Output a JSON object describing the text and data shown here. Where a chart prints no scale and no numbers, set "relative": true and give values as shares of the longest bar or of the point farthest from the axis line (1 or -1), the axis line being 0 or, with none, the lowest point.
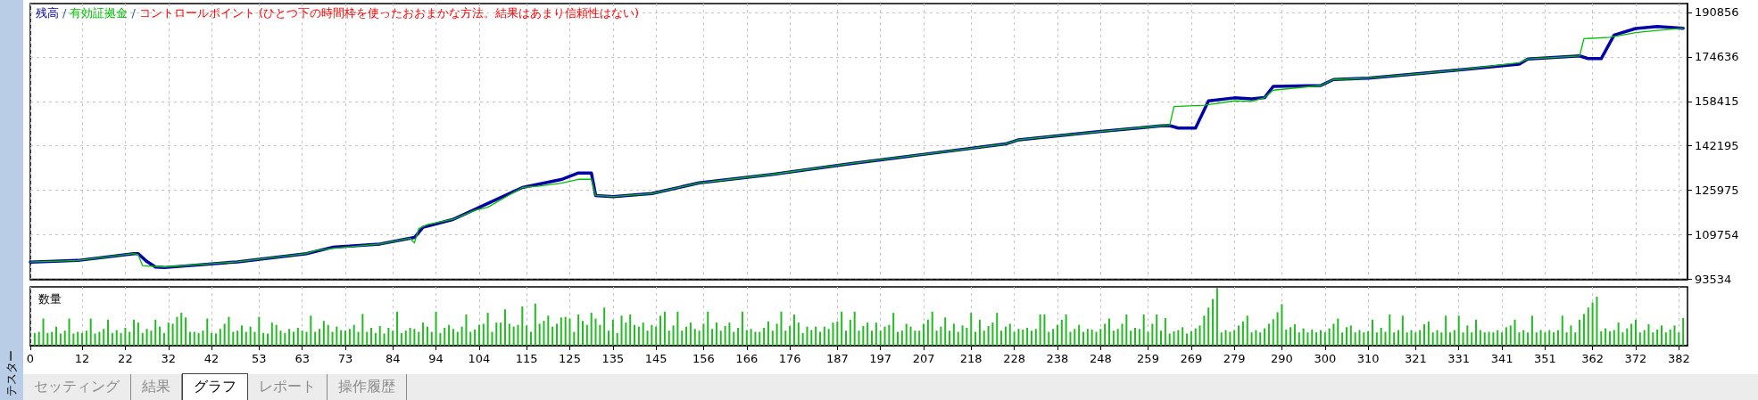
{
  "chart_data": [
    {
      "type": "line",
      "legend": "top left",
      "grid": true,
      "marker": "none",
      "line_style": "solid",
      "tick_labels": "y",
      "xlim": [
        0,
        384
      ],
      "xticks": [
        0,
        12,
        22,
        32,
        42,
        53,
        63,
        73,
        84,
        94,
        104,
        115,
        125,
        135,
        145,
        156,
        166,
        176,
        187,
        197,
        207,
        218,
        228,
        238,
        248,
        259,
        269,
        279,
        290,
        300,
        310,
        321,
        331,
        341,
        351,
        362,
        372,
        382
      ],
      "ylim": [
        93534,
        194100
      ],
      "yticks": [
        93534,
        109754,
        125975,
        142195,
        158415,
        174636,
        190856
      ],
      "annotations": [
        "/",
        "/",
        "コントロールポイント (ひとつ下の時間枠を使ったおおまかな方法。結果はあまり信頼性はない)"
      ],
      "series": [
        {
          "name": "残高",
          "color": "#0000a8",
          "x": [
            0,
            11,
            24,
            25,
            27,
            29,
            31,
            48,
            64,
            70,
            81,
            89,
            91,
            98,
            106,
            114,
            123,
            127,
            130,
            131,
            135,
            144,
            155,
            172,
            190,
            206,
            226,
            229,
            247,
            262,
            264,
            266,
            270,
            273,
            279,
            283,
            286,
            288,
            299,
            302,
            310,
            330,
            345,
            347,
            359,
            361,
            364,
            367,
            372,
            377,
            383
          ],
          "values": [
            99800,
            100400,
            102900,
            102900,
            100000,
            98000,
            97800,
            99900,
            102900,
            105200,
            106400,
            108800,
            112500,
            115400,
            121200,
            127000,
            129900,
            132300,
            132300,
            124100,
            123700,
            124800,
            128700,
            131800,
            135700,
            138900,
            142900,
            144400,
            147300,
            149500,
            149600,
            148700,
            148700,
            158600,
            159700,
            159300,
            159800,
            163900,
            164200,
            166400,
            166900,
            169700,
            172000,
            173900,
            175000,
            174000,
            174000,
            182600,
            185000,
            185700,
            185100
          ]
        },
        {
          "name": "有効証拠金",
          "color": "#00c000",
          "x": [
            0,
            11,
            24,
            25,
            26,
            31,
            48,
            64,
            66,
            70,
            81,
            88,
            89,
            90,
            92,
            98,
            103,
            106,
            114,
            118,
            123,
            127,
            130,
            131,
            135,
            144,
            155,
            172,
            190,
            206,
            226,
            229,
            247,
            262,
            264,
            265,
            272,
            279,
            283,
            286,
            288,
            299,
            302,
            310,
            330,
            345,
            347,
            359,
            360,
            366,
            372,
            377,
            383
          ],
          "values": [
            99800,
            100400,
            102900,
            102500,
            98500,
            98000,
            99900,
            102900,
            104000,
            104800,
            106400,
            108500,
            106800,
            112000,
            113500,
            115400,
            118700,
            119800,
            127000,
            127500,
            128600,
            130000,
            130000,
            124100,
            123700,
            124800,
            128700,
            131800,
            135700,
            138900,
            142900,
            144400,
            147300,
            149500,
            149600,
            156500,
            157000,
            158600,
            158400,
            159800,
            162500,
            164200,
            166400,
            166900,
            169700,
            172500,
            173900,
            175000,
            181300,
            181800,
            183500,
            184300,
            185100
          ]
        }
      ]
    },
    {
      "type": "bar",
      "title": "数量",
      "relative": true,
      "color": "#22bb22",
      "grid": "x",
      "tick_labels": "x",
      "xlim": [
        0,
        384
      ],
      "xticks": [
        0,
        12,
        22,
        32,
        42,
        53,
        63,
        73,
        84,
        94,
        104,
        115,
        125,
        135,
        145,
        156,
        166,
        176,
        187,
        197,
        207,
        218,
        228,
        238,
        248,
        259,
        269,
        279,
        290,
        300,
        310,
        321,
        331,
        341,
        351,
        362,
        372,
        382
      ],
      "annotations": [
        "テスター",
        "セッティング",
        "結果",
        "グラフ",
        "レポート",
        "操作履歴"
      ],
      "x": [
        1,
        2,
        3,
        4,
        5,
        6,
        7,
        8,
        9,
        10,
        11,
        12,
        13,
        14,
        15,
        16,
        17,
        18,
        19,
        20,
        21,
        22,
        23,
        24,
        25,
        26,
        27,
        28,
        29,
        30,
        31,
        32,
        33,
        34,
        35,
        36,
        37,
        38,
        39,
        40,
        41,
        42,
        43,
        44,
        45,
        46,
        47,
        48,
        49,
        50,
        51,
        52,
        53,
        54,
        55,
        56,
        57,
        58,
        59,
        60,
        61,
        62,
        63,
        64,
        65,
        66,
        67,
        68,
        69,
        70,
        71,
        72,
        73,
        74,
        75,
        76,
        77,
        78,
        79,
        80,
        81,
        82,
        83,
        84,
        85,
        86,
        87,
        88,
        89,
        90,
        91,
        92,
        93,
        94,
        95,
        96,
        97,
        98,
        99,
        100,
        101,
        102,
        103,
        104,
        105,
        106,
        107,
        108,
        109,
        110,
        111,
        112,
        113,
        114,
        115,
        116,
        117,
        118,
        119,
        120,
        121,
        122,
        123,
        124,
        125,
        126,
        127,
        128,
        129,
        130,
        131,
        132,
        133,
        134,
        135,
        136,
        137,
        138,
        139,
        140,
        141,
        142,
        143,
        144,
        145,
        146,
        147,
        148,
        149,
        150,
        151,
        152,
        153,
        154,
        155,
        156,
        157,
        158,
        159,
        160,
        161,
        162,
        163,
        164,
        165,
        166,
        167,
        168,
        169,
        170,
        171,
        172,
        173,
        174,
        175,
        176,
        177,
        178,
        179,
        180,
        181,
        182,
        183,
        184,
        185,
        186,
        187,
        188,
        189,
        190,
        191,
        192,
        193,
        194,
        195,
        196,
        197,
        198,
        199,
        200,
        201,
        202,
        203,
        204,
        205,
        206,
        207,
        208,
        209,
        210,
        211,
        212,
        213,
        214,
        215,
        216,
        217,
        218,
        219,
        220,
        221,
        222,
        223,
        224,
        225,
        226,
        227,
        228,
        229,
        230,
        231,
        232,
        233,
        234,
        235,
        236,
        237,
        238,
        239,
        240,
        241,
        242,
        243,
        244,
        245,
        246,
        247,
        248,
        249,
        250,
        251,
        252,
        253,
        254,
        255,
        256,
        257,
        258,
        259,
        260,
        261,
        262,
        263,
        264,
        265,
        266,
        267,
        268,
        269,
        270,
        271,
        272,
        273,
        274,
        275,
        276,
        277,
        278,
        279,
        280,
        281,
        282,
        283,
        284,
        285,
        286,
        287,
        288,
        289,
        290,
        291,
        292,
        293,
        294,
        295,
        296,
        297,
        298,
        299,
        300,
        301,
        302,
        303,
        304,
        305,
        306,
        307,
        308,
        309,
        310,
        311,
        312,
        313,
        314,
        315,
        316,
        317,
        318,
        319,
        320,
        321,
        322,
        323,
        324,
        325,
        326,
        327,
        328,
        329,
        330,
        331,
        332,
        333,
        334,
        335,
        336,
        337,
        338,
        339,
        340,
        341,
        342,
        343,
        344,
        345,
        346,
        347,
        348,
        349,
        350,
        351,
        352,
        353,
        354,
        355,
        356,
        357,
        358,
        359,
        360,
        361,
        362,
        363,
        364,
        365,
        366,
        367,
        368,
        369,
        370,
        371,
        372,
        373,
        374,
        375,
        376,
        377,
        378,
        379,
        380,
        381,
        382,
        383
      ],
      "values": [
        0.22,
        0.24,
        0.47,
        0.22,
        0.24,
        0.33,
        0.21,
        0.26,
        0.47,
        0.21,
        0.24,
        0.22,
        0.26,
        0.47,
        0.21,
        0.24,
        0.29,
        0.45,
        0.22,
        0.27,
        0.22,
        0.31,
        0.24,
        0.45,
        0.4,
        0.22,
        0.29,
        0.26,
        0.45,
        0.33,
        0.22,
        0.4,
        0.38,
        0.5,
        0.57,
        0.49,
        0.24,
        0.24,
        0.22,
        0.26,
        0.47,
        0.22,
        0.21,
        0.29,
        0.38,
        0.5,
        0.24,
        0.26,
        0.35,
        0.24,
        0.33,
        0.24,
        0.5,
        0.22,
        0.21,
        0.4,
        0.36,
        0.26,
        0.22,
        0.29,
        0.24,
        0.31,
        0.26,
        0.24,
        0.52,
        0.24,
        0.29,
        0.43,
        0.36,
        0.24,
        0.33,
        0.27,
        0.26,
        0.29,
        0.36,
        0.24,
        0.55,
        0.24,
        0.31,
        0.22,
        0.34,
        0.21,
        0.31,
        0.26,
        0.59,
        0.22,
        0.26,
        0.31,
        0.29,
        0.24,
        0.4,
        0.33,
        0.24,
        0.59,
        0.22,
        0.31,
        0.36,
        0.29,
        0.24,
        0.33,
        0.54,
        0.24,
        0.28,
        0.36,
        0.38,
        0.57,
        0.24,
        0.4,
        0.4,
        0.63,
        0.38,
        0.33,
        0.36,
        0.68,
        0.35,
        0.24,
        0.73,
        0.38,
        0.43,
        0.52,
        0.33,
        0.38,
        0.49,
        0.5,
        0.47,
        0.24,
        0.54,
        0.43,
        0.36,
        0.57,
        0.47,
        0.36,
        0.66,
        0.26,
        0.45,
        0.22,
        0.52,
        0.4,
        0.54,
        0.36,
        0.33,
        0.4,
        0.26,
        0.36,
        0.33,
        0.52,
        0.59,
        0.26,
        0.35,
        0.59,
        0.26,
        0.33,
        0.4,
        0.29,
        0.26,
        0.38,
        0.59,
        0.29,
        0.4,
        0.26,
        0.34,
        0.4,
        0.24,
        0.31,
        0.59,
        0.27,
        0.29,
        0.24,
        0.24,
        0.31,
        0.42,
        0.26,
        0.38,
        0.59,
        0.26,
        0.34,
        0.54,
        0.4,
        0.22,
        0.33,
        0.27,
        0.33,
        0.24,
        0.33,
        0.29,
        0.4,
        0.42,
        0.59,
        0.26,
        0.45,
        0.59,
        0.26,
        0.34,
        0.4,
        0.26,
        0.4,
        0.26,
        0.33,
        0.36,
        0.57,
        0.24,
        0.26,
        0.38,
        0.33,
        0.26,
        0.26,
        0.38,
        0.45,
        0.59,
        0.26,
        0.33,
        0.49,
        0.26,
        0.38,
        0.24,
        0.35,
        0.31,
        0.57,
        0.24,
        0.45,
        0.26,
        0.34,
        0.4,
        0.57,
        0.26,
        0.33,
        0.38,
        0.24,
        0.29,
        0.28,
        0.31,
        0.26,
        0.29,
        0.54,
        0.54,
        0.24,
        0.29,
        0.36,
        0.45,
        0.54,
        0.24,
        0.29,
        0.36,
        0.24,
        0.29,
        0.28,
        0.24,
        0.29,
        0.38,
        0.47,
        0.26,
        0.29,
        0.38,
        0.54,
        0.26,
        0.31,
        0.29,
        0.54,
        0.24,
        0.38,
        0.54,
        0.26,
        0.48,
        0.21,
        0.25,
        0.27,
        0.32,
        0.21,
        0.25,
        0.3,
        0.35,
        0.52,
        0.66,
        0.81,
        1,
        0.23,
        0.27,
        0.24,
        0.27,
        0.35,
        0.42,
        0.52,
        0.23,
        0.27,
        0.23,
        0.3,
        0.38,
        0.46,
        0.58,
        0.72,
        0.28,
        0.32,
        0.37,
        0.23,
        0.3,
        0.23,
        0.28,
        0.23,
        0.27,
        0.23,
        0.3,
        0.38,
        0.47,
        0.23,
        0.32,
        0.35,
        0.23,
        0.27,
        0.23,
        0.25,
        0.45,
        0.23,
        0.31,
        0.24,
        0.54,
        0.23,
        0.27,
        0.52,
        0.23,
        0.27,
        0.23,
        0.27,
        0.37,
        0.42,
        0.23,
        0.27,
        0.23,
        0.52,
        0.23,
        0.27,
        0.52,
        0.23,
        0.35,
        0.23,
        0.45,
        0.27,
        0.23,
        0.24,
        0.23,
        0.27,
        0.23,
        0.32,
        0.35,
        0.45,
        0.23,
        0.27,
        0.23,
        0.52,
        0.23,
        0.27,
        0.23,
        0.27,
        0.23,
        0.27,
        0.52,
        0.23,
        0.35,
        0.23,
        0.45,
        0.55,
        0.66,
        0.75,
        0.85,
        0.25,
        0.3,
        0.25,
        0.27,
        0.4,
        0.23,
        0.3,
        0.38,
        0.45,
        0.23,
        0.27,
        0.37,
        0.23,
        0.28,
        0.35,
        0.23,
        0.28,
        0.35,
        0.23,
        0.48
      ]
    }
  ]
}
